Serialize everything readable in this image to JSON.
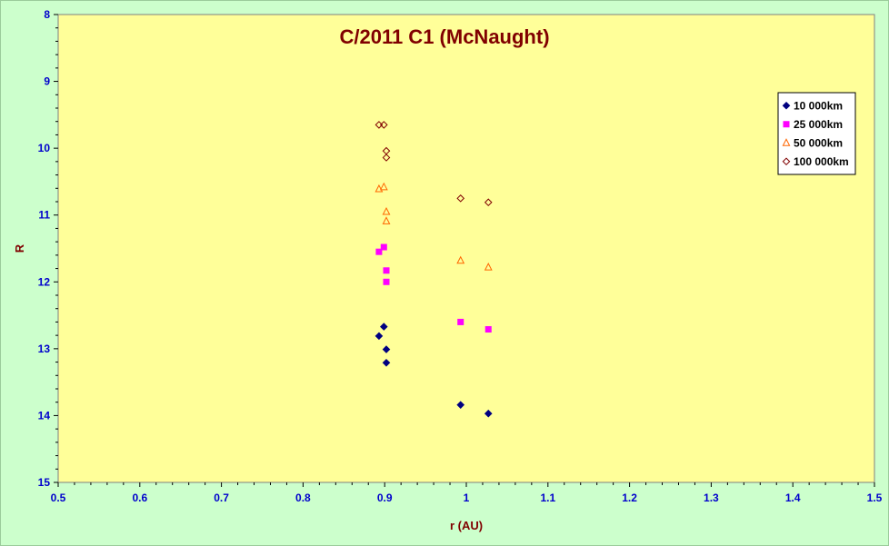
{
  "chart_data": {
    "type": "scatter",
    "title": "C/2011 C1 (McNaught)",
    "xlabel": "r (AU)",
    "ylabel": "R",
    "xlim": [
      0.5,
      1.5
    ],
    "ylim": [
      8,
      15
    ],
    "y_inverted": true,
    "xticks": [
      "0.5",
      "0.6",
      "0.7",
      "0.8",
      "0.9",
      "1",
      "1.1",
      "1.2",
      "1.3",
      "1.4",
      "1.5"
    ],
    "yticks": [
      "8",
      "9",
      "10",
      "11",
      "12",
      "13",
      "14",
      "15"
    ],
    "grid": false,
    "legend_position": "top-right",
    "colors": {
      "plot_background": "#ffff99",
      "chart_background": "#ccffcc",
      "tick_labels": "#0000cc",
      "titles": "#800000"
    },
    "series": [
      {
        "name": "10 000km",
        "marker": "diamond-filled",
        "color": "#000080",
        "points": [
          [
            0.893,
            12.81
          ],
          [
            0.899,
            12.67
          ],
          [
            0.902,
            13.01
          ],
          [
            0.902,
            13.21
          ],
          [
            0.993,
            13.84
          ],
          [
            1.027,
            13.97
          ]
        ]
      },
      {
        "name": "25 000km",
        "marker": "square-filled",
        "color": "#ff00ff",
        "points": [
          [
            0.893,
            11.55
          ],
          [
            0.899,
            11.48
          ],
          [
            0.902,
            11.83
          ],
          [
            0.902,
            12.0
          ],
          [
            0.993,
            12.6
          ],
          [
            1.027,
            12.71
          ]
        ]
      },
      {
        "name": "50 000km",
        "marker": "triangle-open",
        "color": "#ff6600",
        "points": [
          [
            0.893,
            10.61
          ],
          [
            0.899,
            10.58
          ],
          [
            0.902,
            10.95
          ],
          [
            0.902,
            11.09
          ],
          [
            0.993,
            11.68
          ],
          [
            1.027,
            11.78
          ]
        ]
      },
      {
        "name": "100 000km",
        "marker": "diamond-open",
        "color": "#800000",
        "points": [
          [
            0.893,
            9.65
          ],
          [
            0.899,
            9.65
          ],
          [
            0.902,
            10.04
          ],
          [
            0.902,
            10.14
          ],
          [
            0.993,
            10.75
          ],
          [
            1.027,
            10.81
          ]
        ]
      }
    ]
  }
}
